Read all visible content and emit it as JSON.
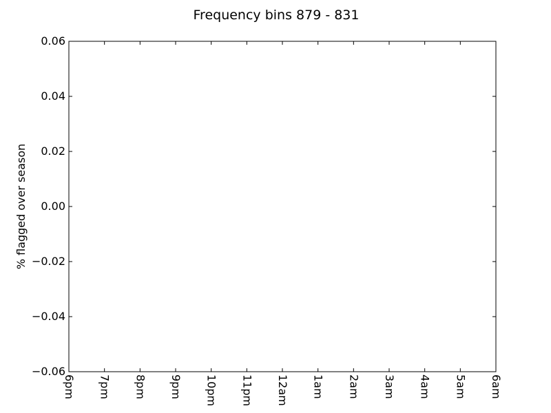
{
  "chart_data": {
    "type": "line",
    "title": "Frequency bins 879 - 831",
    "xlabel": "",
    "ylabel": "% flagged over season",
    "x_ticks": [
      "6pm",
      "7pm",
      "8pm",
      "9pm",
      "10pm",
      "11pm",
      "12am",
      "1am",
      "2am",
      "3am",
      "4am",
      "5am",
      "6am"
    ],
    "y_ticks": [
      "0.06",
      "0.04",
      "0.02",
      "0.00",
      "−0.02",
      "−0.04",
      "−0.06"
    ],
    "ylim": [
      -0.06,
      0.06
    ],
    "grid": false,
    "series": []
  }
}
